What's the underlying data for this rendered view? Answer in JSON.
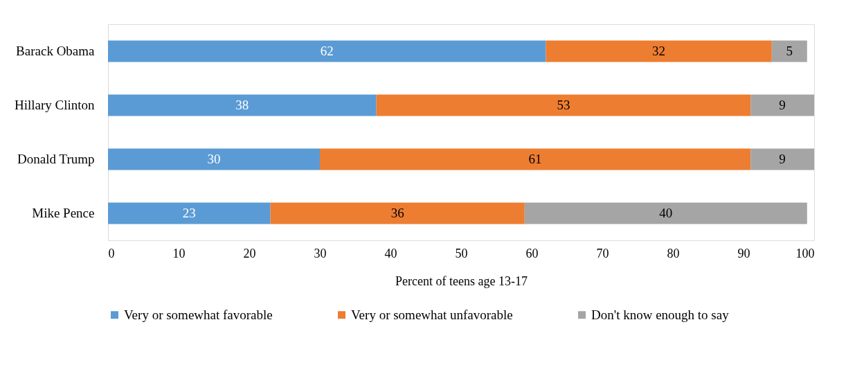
{
  "chart_data": {
    "type": "bar",
    "orientation": "horizontal",
    "stacked": true,
    "categories": [
      "Barack Obama",
      "Hillary Clinton",
      "Donald Trump",
      "Mike Pence"
    ],
    "series": [
      {
        "name": "Very or somewhat favorable",
        "color": "#5b9bd5",
        "values": [
          62,
          38,
          30,
          23
        ]
      },
      {
        "name": "Very or somewhat unfavorable",
        "color": "#ed7d31",
        "values": [
          32,
          53,
          61,
          36
        ]
      },
      {
        "name": "Don't know enough to say",
        "color": "#a5a5a5",
        "values": [
          5,
          9,
          9,
          40
        ]
      }
    ],
    "xlabel": "Percent of teens age 13-17",
    "xlim": [
      0,
      100
    ],
    "xticks": [
      0,
      10,
      20,
      30,
      40,
      50,
      60,
      70,
      80,
      90,
      100
    ],
    "data_labels": true,
    "legend": "bottom",
    "grid": false
  }
}
